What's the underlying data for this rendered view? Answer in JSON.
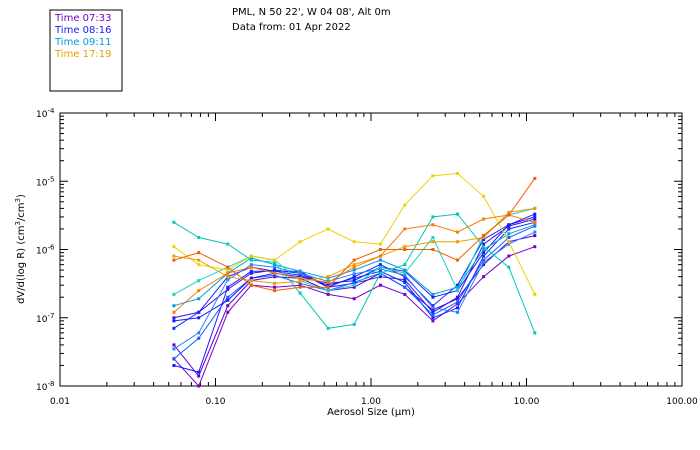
{
  "header": {
    "station": "PML, N 50 22', W 04 08', Alt 0m",
    "date": "Data from: 01 Apr 2022"
  },
  "legend": [
    {
      "label": "Time 07:33",
      "color": "#7a00c8"
    },
    {
      "label": "Time 08:16",
      "color": "#1a1aff"
    },
    {
      "label": "Time 09:11",
      "color": "#00a0d8"
    },
    {
      "label": "Time 17:19",
      "color": "#e8a000"
    }
  ],
  "chart_data": {
    "type": "line",
    "title": "PML, N 50 22', W 04 08', Alt 0m",
    "subtitle": "Data from: 01 Apr 2022",
    "xlabel_parts": [
      "Aerosol Size (",
      "μ",
      "m)"
    ],
    "ylabel_parts": [
      "dV/d(log R) (cm",
      "3",
      "/cm",
      "3",
      ")"
    ],
    "xscale": "log",
    "yscale": "log",
    "xlim": [
      0.01,
      100
    ],
    "ylim": [
      1e-08,
      0.0001
    ],
    "x_ticks": [
      {
        "value": 0.01,
        "label": "0.01"
      },
      {
        "value": 0.1,
        "label": "0.10"
      },
      {
        "value": 1,
        "label": "1.00"
      },
      {
        "value": 10,
        "label": "10.00"
      },
      {
        "value": 100,
        "label": "100.00"
      }
    ],
    "y_ticks": [
      {
        "value": 1e-08,
        "base": "10",
        "exp": "-8"
      },
      {
        "value": 1e-07,
        "base": "10",
        "exp": "-7"
      },
      {
        "value": 1e-06,
        "base": "10",
        "exp": "-6"
      },
      {
        "value": 1e-05,
        "base": "10",
        "exp": "-5"
      },
      {
        "value": 0.0001,
        "base": "10",
        "exp": "-4"
      }
    ],
    "x": [
      0.054,
      0.078,
      0.12,
      0.17,
      0.24,
      0.35,
      0.53,
      0.78,
      1.15,
      1.65,
      2.5,
      3.6,
      5.3,
      7.7,
      11.3
    ],
    "series": [
      {
        "name": "s01",
        "color": "#7a00c8",
        "values": [
          2.5e-08,
          1e-08,
          1.2e-07,
          3e-07,
          2.8e-07,
          3e-07,
          2.2e-07,
          1.9e-07,
          3e-07,
          2.2e-07,
          9e-08,
          1.6e-07,
          4e-07,
          8e-07,
          1.1e-06
        ]
      },
      {
        "name": "s02",
        "color": "#5a00d8",
        "values": [
          4e-08,
          1.4e-08,
          1.5e-07,
          3.5e-07,
          4e-07,
          3.8e-07,
          2.5e-07,
          2.8e-07,
          4.5e-07,
          2.8e-07,
          1.3e-07,
          1.9e-07,
          6e-07,
          1.3e-06,
          1.6e-06
        ]
      },
      {
        "name": "s03",
        "color": "#3a10e8",
        "values": [
          1e-07,
          1.2e-07,
          2.6e-07,
          4.5e-07,
          5e-07,
          4.5e-07,
          2.8e-07,
          3.2e-07,
          4e-07,
          3.6e-07,
          1.2e-07,
          2e-07,
          1.2e-06,
          2.2e-06,
          2.8e-06
        ]
      },
      {
        "name": "s04",
        "color": "#1a1aff",
        "values": [
          2e-08,
          1.6e-08,
          2.8e-07,
          4.8e-07,
          4.8e-07,
          4.8e-07,
          2.8e-07,
          4e-07,
          6e-07,
          4e-07,
          1.5e-07,
          3e-07,
          1.4e-06,
          2.3e-06,
          3e-06
        ]
      },
      {
        "name": "s05",
        "color": "#0a2cff",
        "values": [
          7e-08,
          1.2e-07,
          4e-07,
          5.5e-07,
          4.8e-07,
          4.2e-07,
          3e-07,
          3.8e-07,
          4.8e-07,
          3.3e-07,
          1e-07,
          1.4e-07,
          8e-07,
          2e-06,
          2.5e-06
        ]
      },
      {
        "name": "s06",
        "color": "#1060ff",
        "values": [
          2.5e-08,
          5e-08,
          2e-07,
          3.8e-07,
          4.2e-07,
          3.2e-07,
          2.5e-07,
          3.3e-07,
          4.5e-07,
          2.8e-07,
          1.1e-07,
          1.7e-07,
          7e-07,
          1.5e-06,
          2.2e-06
        ]
      },
      {
        "name": "s07",
        "color": "#1a1aff",
        "values": [
          9e-08,
          1e-07,
          1.8e-07,
          3.8e-07,
          4.5e-07,
          4e-07,
          3.2e-07,
          3.5e-07,
          5.5e-07,
          4.8e-07,
          2e-07,
          2.5e-07,
          9e-07,
          2.3e-06,
          3.3e-06
        ]
      },
      {
        "name": "s08",
        "color": "#2a80ff",
        "values": [
          3.5e-08,
          6e-08,
          3.6e-07,
          6e-07,
          5.5e-07,
          4.5e-07,
          3.4e-07,
          4.4e-07,
          5.2e-07,
          4.2e-07,
          1.4e-07,
          1.2e-07,
          6.5e-07,
          1.2e-06,
          1.8e-06
        ]
      },
      {
        "name": "s09",
        "color": "#00a0d8",
        "values": [
          1.5e-07,
          1.9e-07,
          4.5e-07,
          7.5e-07,
          6e-07,
          4.8e-07,
          3.8e-07,
          5e-07,
          7e-07,
          5e-07,
          2.2e-07,
          2.8e-07,
          1e-06,
          1.7e-06,
          2.3e-06
        ]
      },
      {
        "name": "s10",
        "color": "#00c8b8",
        "values": [
          2.5e-06,
          1.5e-06,
          1.2e-06,
          7e-07,
          6.5e-07,
          2.3e-07,
          7e-08,
          8e-08,
          4.5e-07,
          6e-07,
          3e-06,
          3.3e-06,
          1.1e-06,
          5.5e-07,
          6e-08
        ]
      },
      {
        "name": "s11",
        "color": "#20d0c0",
        "values": [
          2.2e-07,
          3.5e-07,
          5.5e-07,
          8e-07,
          7e-07,
          3.5e-07,
          2.5e-07,
          3e-07,
          5.5e-07,
          4.5e-07,
          1.5e-06,
          2.5e-07,
          1.6e-06,
          3.2e-06,
          4e-06
        ]
      },
      {
        "name": "s12",
        "color": "#f0d000",
        "values": [
          1.1e-06,
          6e-07,
          5e-07,
          8e-07,
          7e-07,
          1.3e-06,
          2e-06,
          1.3e-06,
          1.2e-06,
          4.5e-06,
          1.2e-05,
          1.3e-05,
          6e-06,
          1.3e-06,
          2.2e-07
        ]
      },
      {
        "name": "s13",
        "color": "#e8a000",
        "values": [
          8e-07,
          7e-07,
          4e-07,
          3.5e-07,
          3.2e-07,
          3.4e-07,
          4e-07,
          6e-07,
          8e-07,
          1.1e-06,
          1.3e-06,
          1.3e-06,
          1.5e-06,
          3.5e-06,
          4e-06
        ]
      },
      {
        "name": "s14",
        "color": "#ff7800",
        "values": [
          1.2e-07,
          2.5e-07,
          4.5e-07,
          5.5e-07,
          4.5e-07,
          3.8e-07,
          3.3e-07,
          5.5e-07,
          8e-07,
          2e-06,
          2.3e-06,
          1.8e-06,
          2.8e-06,
          3.2e-06,
          2.5e-06
        ]
      },
      {
        "name": "s15",
        "color": "#f06000",
        "values": [
          7e-07,
          9e-07,
          5.5e-07,
          3e-07,
          2.5e-07,
          2.8e-07,
          2.8e-07,
          7e-07,
          1e-06,
          1e-06,
          1e-06,
          7e-07,
          1.6e-06,
          3.2e-06,
          1.1e-05
        ]
      }
    ]
  }
}
